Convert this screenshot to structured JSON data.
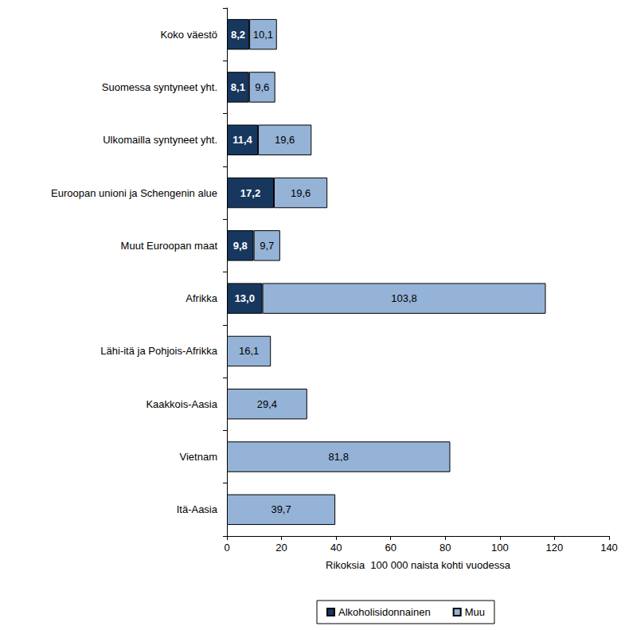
{
  "chart_data": {
    "type": "bar",
    "orientation": "horizontal",
    "stacked": true,
    "data_labels": true,
    "grid": false,
    "legend": "bottom",
    "x_label": "Rikoksia  100 000 naista kohti vuodessa",
    "categories": [
      "Koko väestö",
      "Suomessa syntyneet yht.",
      "Ulkomailla syntyneet yht.",
      "Euroopan unioni ja Schengenin alue",
      "Muut Euroopan maat",
      "Afrikka",
      "Lähi-itä ja Pohjois-Afrikka",
      "Kaakkois-Aasia",
      "Vietnam",
      "Itä-Aasia"
    ],
    "series": [
      {
        "name": "Alkoholisidonnainen",
        "color": "#17375e",
        "values": [
          8.2,
          8.1,
          11.4,
          17.2,
          9.8,
          13.0,
          null,
          null,
          null,
          null
        ],
        "value_labels": [
          "8,2",
          "8,1",
          "11,4",
          "17,2",
          "9,8",
          "13,0",
          null,
          null,
          null,
          null
        ]
      },
      {
        "name": "Muu",
        "color": "#95b3d7",
        "values": [
          10.1,
          9.6,
          19.6,
          19.6,
          9.7,
          103.8,
          16.1,
          29.4,
          81.8,
          39.7
        ],
        "value_labels": [
          "10,1",
          "9,6",
          "19,6",
          "19,6",
          "9,7",
          "103,8",
          "16,1",
          "29,4",
          "81,8",
          "39,7"
        ]
      }
    ],
    "xlim": [
      0,
      140
    ],
    "xticks": [
      0,
      20,
      40,
      60,
      80,
      100,
      120,
      140
    ]
  }
}
